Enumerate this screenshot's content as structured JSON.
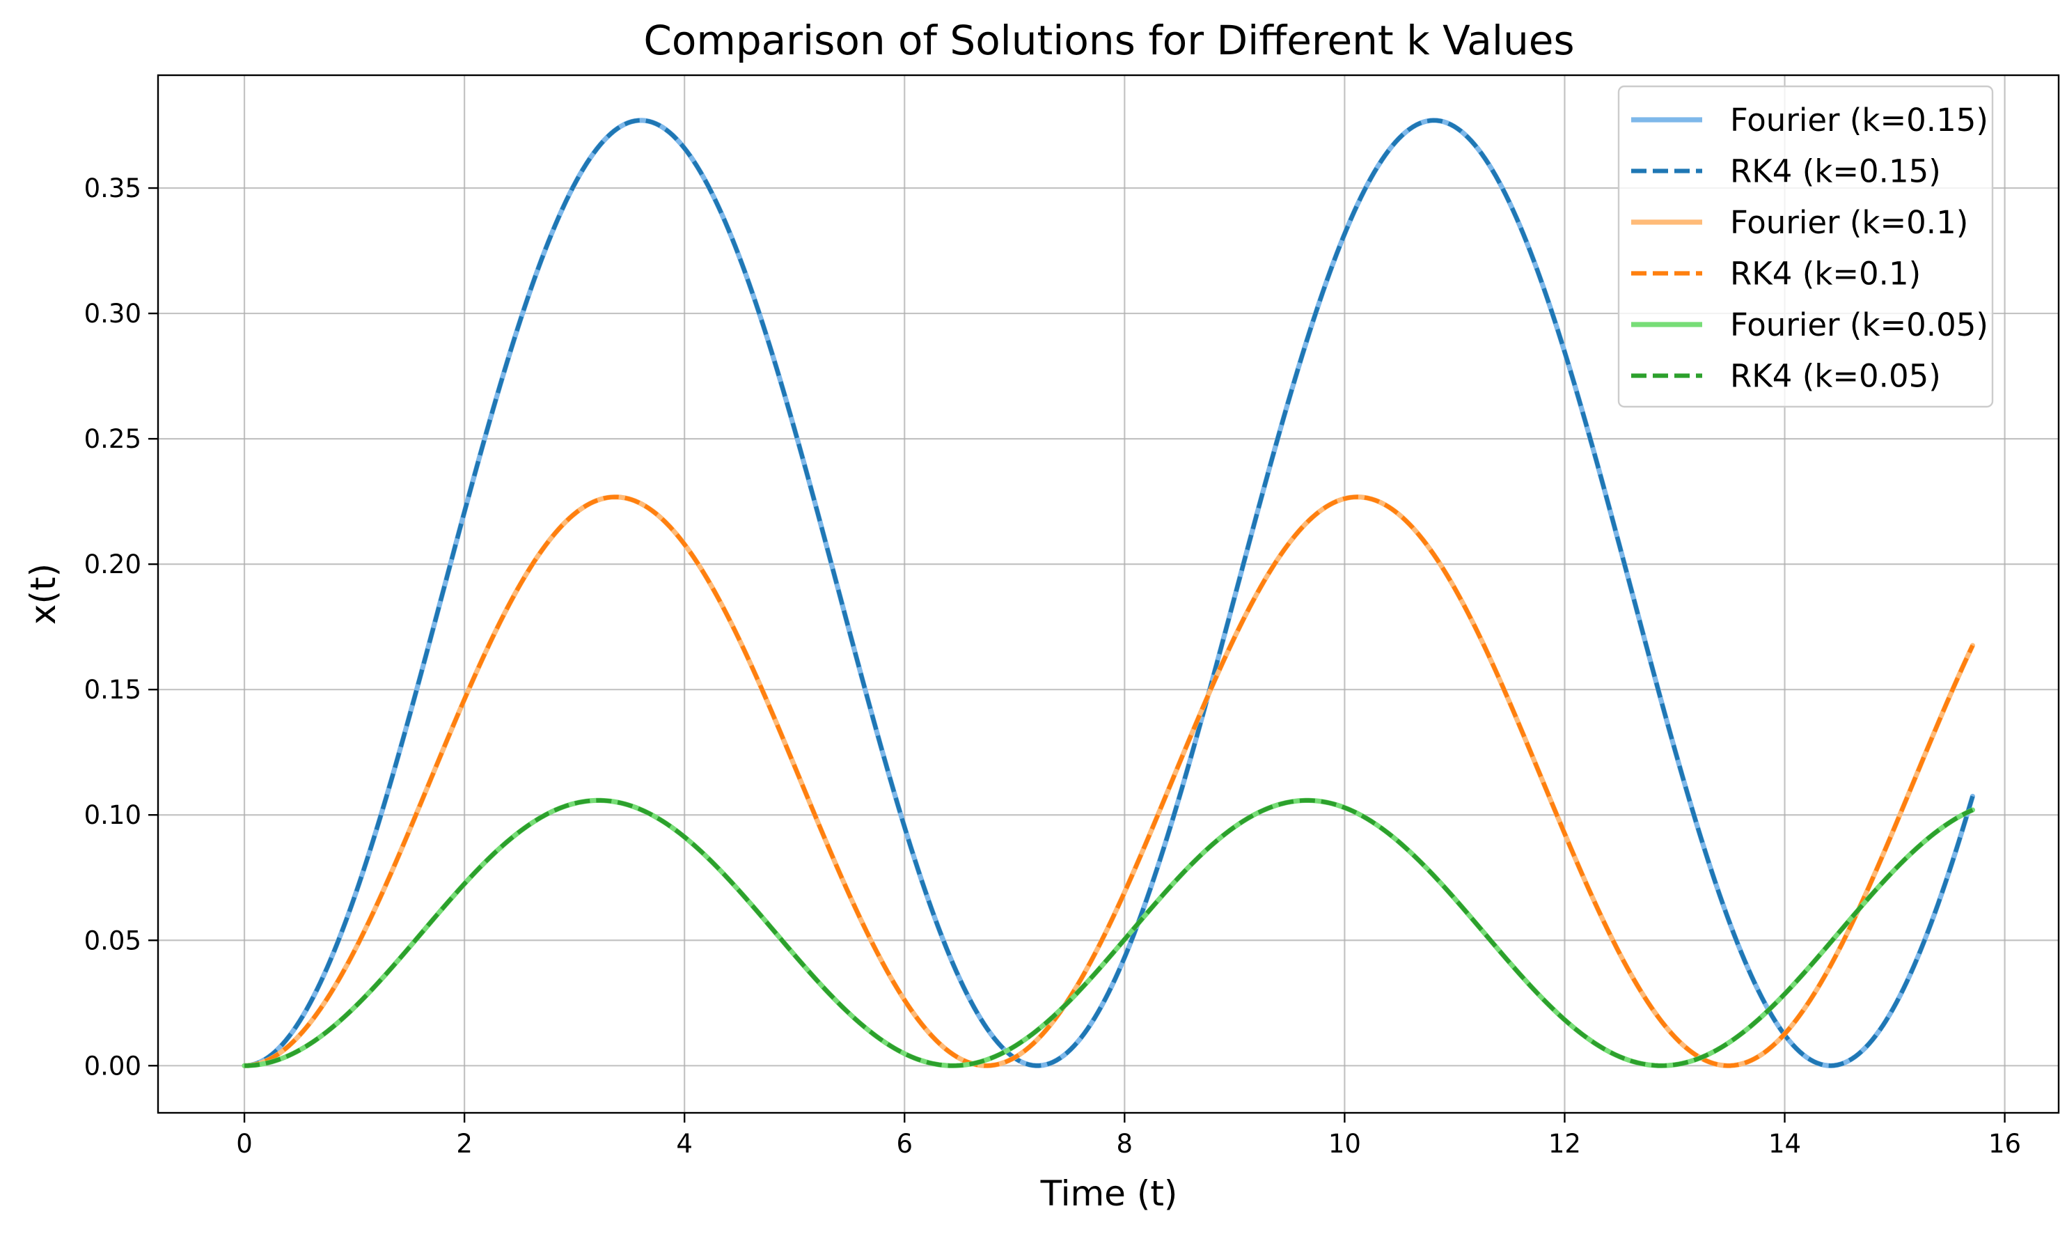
{
  "chart_data": {
    "type": "line",
    "title": "Comparison of Solutions for Different k Values",
    "xlabel": "Time (t)",
    "ylabel": "x(t)",
    "xlim": [
      -0.785,
      16.49
    ],
    "ylim": [
      -0.0188,
      0.395
    ],
    "xticks": [
      0,
      2,
      4,
      6,
      8,
      10,
      12,
      14,
      16
    ],
    "xtick_labels": [
      "0",
      "2",
      "4",
      "6",
      "8",
      "10",
      "12",
      "14",
      "16"
    ],
    "yticks": [
      0.0,
      0.05,
      0.1,
      0.15,
      0.2,
      0.25,
      0.3,
      0.35
    ],
    "ytick_labels": [
      "0.00",
      "0.05",
      "0.10",
      "0.15",
      "0.20",
      "0.25",
      "0.30",
      "0.35"
    ],
    "grid": true,
    "legend_position": "top-right",
    "x_range": [
      0,
      15.708
    ],
    "series": [
      {
        "name": "Fourier (k=0.15)",
        "k": 0.15,
        "style": "solid",
        "color": "#7eb8ea",
        "model": {
          "A": 0.1885,
          "omega": 0.8717
        }
      },
      {
        "name": "RK4 (k=0.15)",
        "k": 0.15,
        "style": "dashed",
        "color": "#1f77b4",
        "model": {
          "A": 0.1885,
          "omega": 0.8717
        }
      },
      {
        "name": "Fourier (k=0.1)",
        "k": 0.1,
        "style": "solid",
        "color": "#ffbb78",
        "model": {
          "A": 0.1134,
          "omega": 0.9317
        }
      },
      {
        "name": "RK4 (k=0.1)",
        "k": 0.1,
        "style": "dashed",
        "color": "#ff7f0e",
        "model": {
          "A": 0.1134,
          "omega": 0.9317
        }
      },
      {
        "name": "Fourier (k=0.05)",
        "k": 0.05,
        "style": "solid",
        "color": "#77dd77",
        "model": {
          "A": 0.0529,
          "omega": 0.9757
        }
      },
      {
        "name": "RK4 (k=0.05)",
        "k": 0.05,
        "style": "dashed",
        "color": "#2ca02c",
        "model": {
          "A": 0.0529,
          "omega": 0.9757
        }
      }
    ]
  }
}
